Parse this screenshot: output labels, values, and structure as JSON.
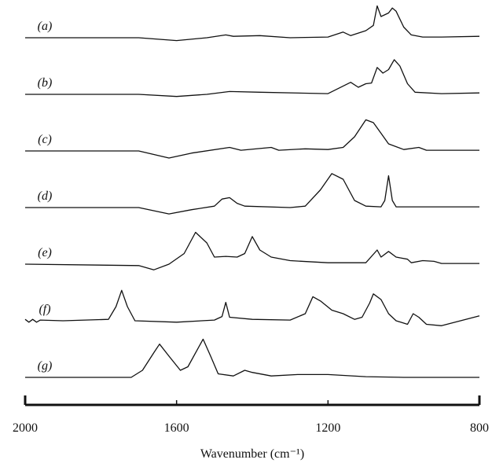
{
  "chart_data": {
    "type": "line",
    "x_label": "Wavenumber (cm⁻¹)",
    "xlim": [
      2000,
      800
    ],
    "xticks": [
      2000,
      1600,
      1200,
      800
    ],
    "ylim": [
      -0.2,
      1.1
    ],
    "color": "#111111",
    "series": [
      {
        "name": "(a)",
        "x": [
          2000,
          1700,
          1600,
          1520,
          1470,
          1450,
          1380,
          1300,
          1200,
          1160,
          1140,
          1100,
          1080,
          1070,
          1060,
          1040,
          1030,
          1020,
          1000,
          980,
          950,
          900,
          800
        ],
        "values": [
          0,
          0,
          -0.08,
          0,
          0.08,
          0.04,
          0.06,
          0,
          0.02,
          0.16,
          0.06,
          0.2,
          0.35,
          0.9,
          0.6,
          0.7,
          0.84,
          0.75,
          0.3,
          0.08,
          0.02,
          0.02,
          0.04
        ]
      },
      {
        "name": "(b)",
        "x": [
          2000,
          1700,
          1600,
          1520,
          1460,
          1380,
          1200,
          1140,
          1120,
          1100,
          1085,
          1070,
          1055,
          1040,
          1025,
          1010,
          990,
          970,
          900,
          800
        ],
        "values": [
          0,
          0,
          -0.06,
          0,
          0.08,
          0.06,
          0.02,
          0.34,
          0.2,
          0.3,
          0.32,
          0.76,
          0.6,
          0.7,
          0.98,
          0.8,
          0.3,
          0.06,
          0.02,
          0.04
        ]
      },
      {
        "name": "(c)",
        "x": [
          2000,
          1700,
          1620,
          1560,
          1460,
          1430,
          1350,
          1330,
          1260,
          1200,
          1160,
          1130,
          1100,
          1080,
          1060,
          1040,
          1000,
          960,
          940,
          800
        ],
        "values": [
          0,
          0,
          -0.2,
          -0.06,
          0.1,
          0.02,
          0.1,
          0.02,
          0.06,
          0.04,
          0.1,
          0.4,
          0.88,
          0.8,
          0.5,
          0.2,
          0.04,
          0.1,
          0.02,
          0.02
        ]
      },
      {
        "name": "(d)",
        "x": [
          2000,
          1700,
          1620,
          1560,
          1500,
          1480,
          1460,
          1440,
          1420,
          1300,
          1260,
          1220,
          1190,
          1160,
          1130,
          1100,
          1060,
          1050,
          1040,
          1030,
          1020,
          800
        ],
        "values": [
          0,
          0,
          -0.18,
          -0.06,
          0.04,
          0.24,
          0.28,
          0.12,
          0.04,
          0,
          0.04,
          0.5,
          0.96,
          0.8,
          0.2,
          0.04,
          0.02,
          0.2,
          0.9,
          0.2,
          0.02,
          0.02
        ]
      },
      {
        "name": "(e)",
        "x": [
          2000,
          1700,
          1660,
          1620,
          1580,
          1550,
          1520,
          1500,
          1470,
          1440,
          1420,
          1400,
          1380,
          1350,
          1300,
          1200,
          1100,
          1070,
          1060,
          1040,
          1020,
          990,
          980,
          950,
          920,
          900,
          800
        ],
        "values": [
          0,
          -0.04,
          -0.16,
          0,
          0.3,
          0.9,
          0.6,
          0.2,
          0.22,
          0.2,
          0.3,
          0.78,
          0.4,
          0.2,
          0.1,
          0.04,
          0.04,
          0.4,
          0.2,
          0.36,
          0.2,
          0.14,
          0.04,
          0.1,
          0.08,
          0.02,
          0.02
        ]
      },
      {
        "name": "(f)",
        "x": [
          2000,
          1990,
          1980,
          1970,
          1960,
          1900,
          1780,
          1760,
          1745,
          1730,
          1710,
          1600,
          1500,
          1480,
          1470,
          1460,
          1400,
          1300,
          1260,
          1240,
          1220,
          1190,
          1160,
          1130,
          1110,
          1090,
          1080,
          1060,
          1040,
          1020,
          990,
          975,
          960,
          940,
          900,
          850,
          800
        ],
        "values": [
          0.04,
          -0.04,
          0.04,
          -0.04,
          0.02,
          0,
          0.04,
          0.4,
          0.86,
          0.4,
          0,
          -0.04,
          0.02,
          0.12,
          0.52,
          0.1,
          0.04,
          0.02,
          0.2,
          0.68,
          0.56,
          0.3,
          0.2,
          0.04,
          0.1,
          0.5,
          0.76,
          0.6,
          0.2,
          0,
          -0.1,
          0.2,
          0.1,
          -0.1,
          -0.14,
          0,
          0.14
        ]
      },
      {
        "name": "(g)",
        "x": [
          2000,
          1720,
          1690,
          1660,
          1645,
          1620,
          1590,
          1570,
          1530,
          1510,
          1490,
          1450,
          1420,
          1400,
          1350,
          1280,
          1200,
          1100,
          1000,
          800
        ],
        "values": [
          0,
          0,
          0.2,
          0.7,
          0.94,
          0.6,
          0.2,
          0.3,
          1.08,
          0.6,
          0.1,
          0.04,
          0.2,
          0.14,
          0.04,
          0.08,
          0.08,
          0.02,
          0,
          0
        ]
      }
    ]
  }
}
